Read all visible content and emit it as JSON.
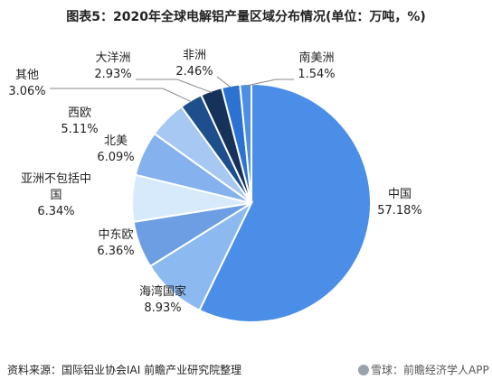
{
  "header": {
    "title": "图表5：2020年全球电解铝产量区域分布情况(单位：万吨，%)"
  },
  "footer": {
    "source": "资料来源：国际铝业协会IAI 前瞻产业研究院整理",
    "credit": "雪球：前瞻经济学人APP"
  },
  "chart_data": {
    "type": "pie",
    "title": "图表5：2020年全球电解铝产量区域分布情况(单位：万吨，%)",
    "slices": [
      {
        "label": "中国",
        "value": 57.18,
        "text": "57.18%",
        "color": "#4a8ee8"
      },
      {
        "label": "海湾国家",
        "value": 8.93,
        "text": "8.93%",
        "color": "#8cbaf0"
      },
      {
        "label": "中东欧",
        "value": 6.36,
        "text": "6.36%",
        "color": "#6d9ee3"
      },
      {
        "label": "亚洲不包括中国",
        "value": 6.34,
        "text": "6.34%",
        "color": "#d6eafc"
      },
      {
        "label": "北美",
        "value": 6.09,
        "text": "6.09%",
        "color": "#85b2ee"
      },
      {
        "label": "西欧",
        "value": 5.11,
        "text": "5.11%",
        "color": "#a7c8f3"
      },
      {
        "label": "其他",
        "value": 3.06,
        "text": "3.06%",
        "color": "#1e4f8c"
      },
      {
        "label": "大洋洲",
        "value": 2.93,
        "text": "2.93%",
        "color": "#16315a"
      },
      {
        "label": "非洲",
        "value": 2.46,
        "text": "2.46%",
        "color": "#2c72d2"
      },
      {
        "label": "南美洲",
        "value": 1.54,
        "text": "1.54%",
        "color": "#4d8fe5"
      }
    ]
  }
}
